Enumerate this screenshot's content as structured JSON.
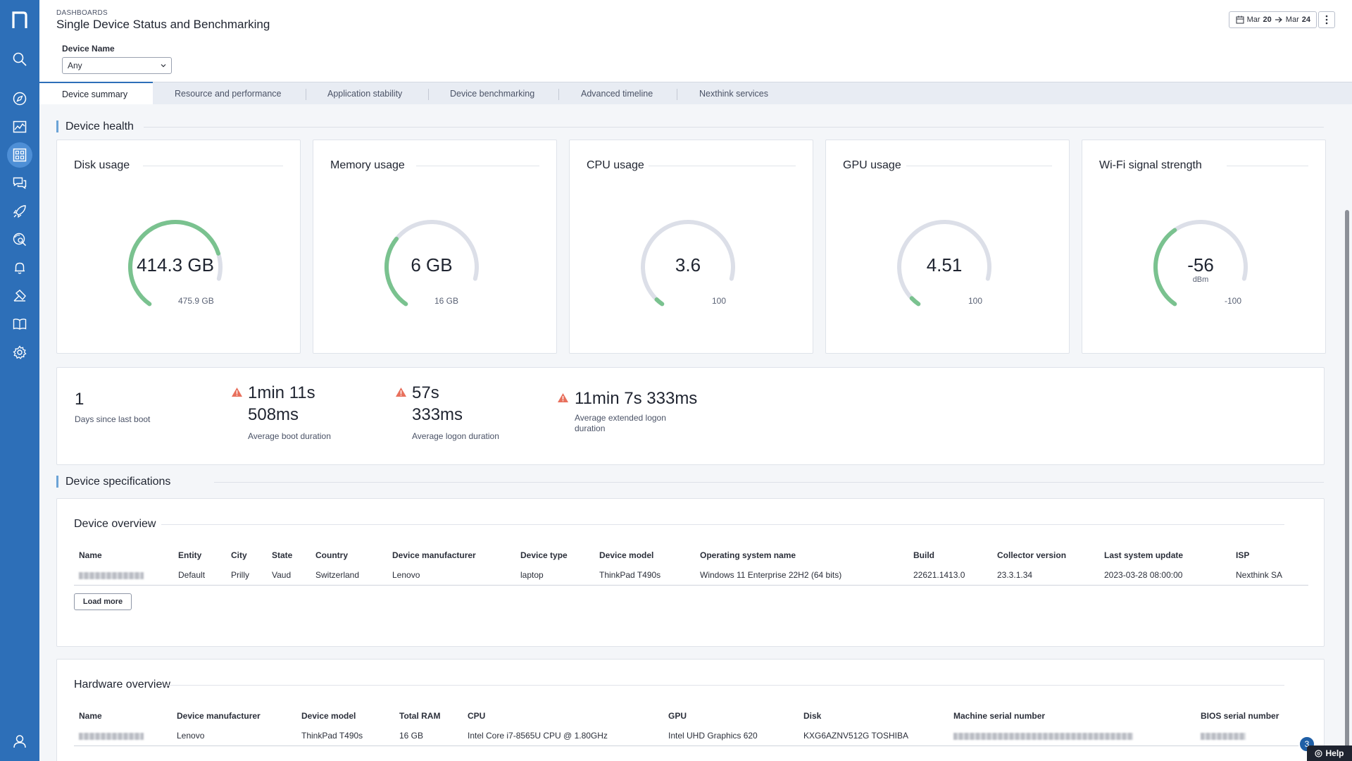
{
  "colors": {
    "sidebar": "#2d6fb8",
    "accent": "#6ba3d6",
    "gauge_fill": "#7ac28f",
    "gauge_track": "#dcdfe8",
    "warning": "#e8705c"
  },
  "sidebar": {
    "logo": "nexthink-logo",
    "items": [
      {
        "icon": "search-icon"
      },
      {
        "icon": "compass-icon"
      },
      {
        "icon": "chart-icon"
      },
      {
        "icon": "dashboard-icon",
        "active": true
      },
      {
        "icon": "chat-icon"
      },
      {
        "icon": "rocket-icon"
      },
      {
        "icon": "investigate-icon"
      },
      {
        "icon": "bell-icon"
      },
      {
        "icon": "remote-action-icon"
      },
      {
        "icon": "book-icon"
      },
      {
        "icon": "gear-icon"
      }
    ],
    "bottom_icon": "user-icon"
  },
  "header": {
    "breadcrumb": "DASHBOARDS",
    "title": "Single Device Status and Benchmarking",
    "date_from_prefix": "Mar",
    "date_from_day": "20",
    "date_to_prefix": "Mar",
    "date_to_day": "24"
  },
  "filter": {
    "label": "Device Name",
    "value": "Any"
  },
  "tabs": [
    {
      "label": "Device summary",
      "active": true
    },
    {
      "label": "Resource and performance"
    },
    {
      "label": "Application stability"
    },
    {
      "label": "Device benchmarking"
    },
    {
      "label": "Advanced timeline"
    },
    {
      "label": "Nexthink services"
    }
  ],
  "device_health": {
    "title": "Device health",
    "gauges": [
      {
        "title": "Disk usage",
        "value": "414.3 GB",
        "unit": "",
        "max": "475.9 GB",
        "fraction": 0.87
      },
      {
        "title": "Memory usage",
        "value": "6 GB",
        "unit": "",
        "max": "16 GB",
        "fraction": 0.375
      },
      {
        "title": "CPU usage",
        "value": "3.6",
        "unit": "",
        "max": "100",
        "fraction": 0.036
      },
      {
        "title": "GPU usage",
        "value": "4.51",
        "unit": "",
        "max": "100",
        "fraction": 0.045
      },
      {
        "title": "Wi-Fi signal strength",
        "value": "-56",
        "unit": "dBm",
        "max": "-100",
        "fraction": 0.44
      }
    ],
    "kpis": [
      {
        "value": "1",
        "label": "Days since last boot",
        "warning": false
      },
      {
        "value_line1": "1min 11s",
        "value_line2": "508ms",
        "label": "Average boot duration",
        "warning": true
      },
      {
        "value_line1": "57s",
        "value_line2": "333ms",
        "label": "Average logon duration",
        "warning": true
      },
      {
        "value": "11min 7s 333ms",
        "label_line1": "Average extended logon",
        "label_line2": "duration",
        "warning": true
      }
    ]
  },
  "device_specifications": {
    "title": "Device specifications",
    "device_overview": {
      "title": "Device overview",
      "columns": [
        "Name",
        "Entity",
        "City",
        "State",
        "Country",
        "Device manufacturer",
        "Device type",
        "Device model",
        "Operating system name",
        "Build",
        "Collector version",
        "Last system update",
        "ISP"
      ],
      "rows": [
        [
          "",
          "Default",
          "Prilly",
          "Vaud",
          "Switzerland",
          "Lenovo",
          "laptop",
          "ThinkPad T490s",
          "Windows 11 Enterprise 22H2 (64 bits)",
          "22621.1413.0",
          "23.3.1.34",
          "2023-03-28 08:00:00",
          "Nexthink SA"
        ]
      ],
      "load_more": "Load more"
    },
    "hardware_overview": {
      "title": "Hardware overview",
      "columns": [
        "Name",
        "Device manufacturer",
        "Device model",
        "Total RAM",
        "CPU",
        "GPU",
        "Disk",
        "Machine serial number",
        "BIOS serial number"
      ],
      "rows": [
        [
          "",
          "Lenovo",
          "ThinkPad T490s",
          "16 GB",
          "Intel Core i7-8565U CPU @ 1.80GHz",
          "Intel UHD Graphics 620",
          "KXG6AZNV512G TOSHIBA",
          "",
          ""
        ]
      ]
    }
  },
  "help": {
    "badge_count": "3",
    "label": "Help"
  }
}
